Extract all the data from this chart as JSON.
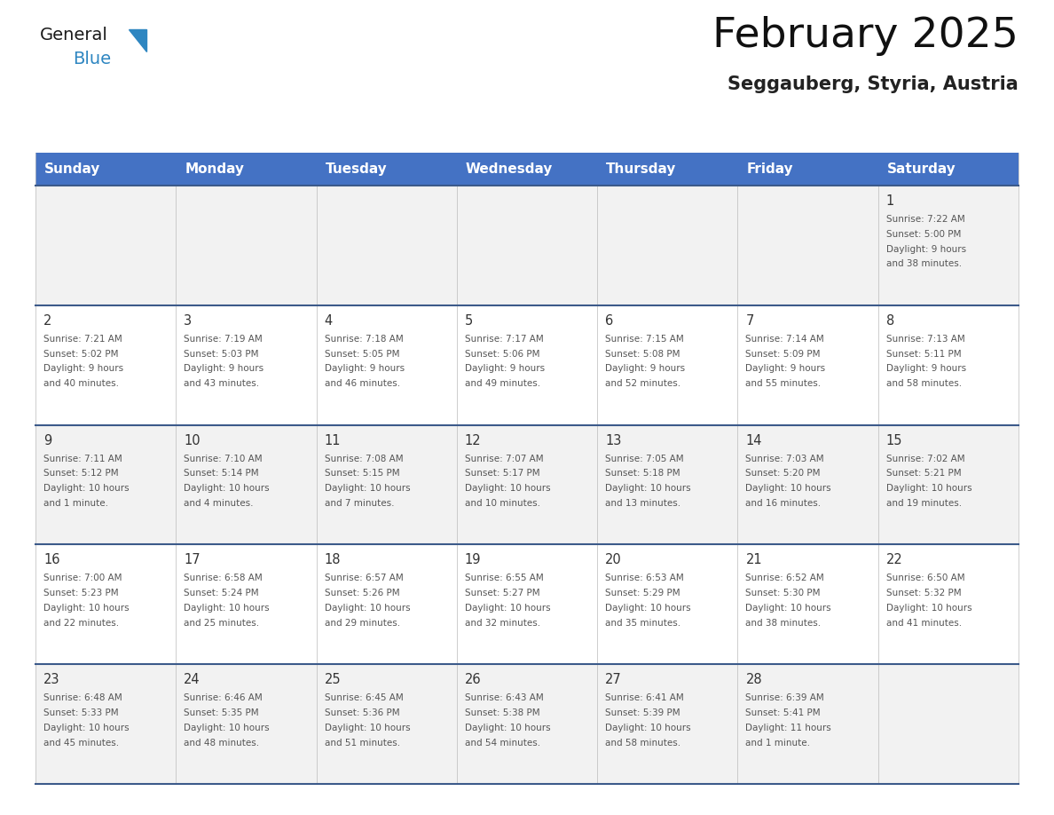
{
  "title": "February 2025",
  "subtitle": "Seggauberg, Styria, Austria",
  "header_bg": "#4472C4",
  "header_text_color": "#FFFFFF",
  "days_of_week": [
    "Sunday",
    "Monday",
    "Tuesday",
    "Wednesday",
    "Thursday",
    "Friday",
    "Saturday"
  ],
  "row_bg": [
    "#F2F2F2",
    "#FFFFFF",
    "#F2F2F2",
    "#FFFFFF",
    "#F2F2F2"
  ],
  "cell_border_color": "#3C5A8A",
  "day_number_color": "#333333",
  "text_color": "#555555",
  "logo_general_color": "#1a1a1a",
  "logo_blue_color": "#2E86C1",
  "calendar": [
    [
      {
        "day": null,
        "lines": []
      },
      {
        "day": null,
        "lines": []
      },
      {
        "day": null,
        "lines": []
      },
      {
        "day": null,
        "lines": []
      },
      {
        "day": null,
        "lines": []
      },
      {
        "day": null,
        "lines": []
      },
      {
        "day": 1,
        "lines": [
          "Sunrise: 7:22 AM",
          "Sunset: 5:00 PM",
          "Daylight: 9 hours",
          "and 38 minutes."
        ]
      }
    ],
    [
      {
        "day": 2,
        "lines": [
          "Sunrise: 7:21 AM",
          "Sunset: 5:02 PM",
          "Daylight: 9 hours",
          "and 40 minutes."
        ]
      },
      {
        "day": 3,
        "lines": [
          "Sunrise: 7:19 AM",
          "Sunset: 5:03 PM",
          "Daylight: 9 hours",
          "and 43 minutes."
        ]
      },
      {
        "day": 4,
        "lines": [
          "Sunrise: 7:18 AM",
          "Sunset: 5:05 PM",
          "Daylight: 9 hours",
          "and 46 minutes."
        ]
      },
      {
        "day": 5,
        "lines": [
          "Sunrise: 7:17 AM",
          "Sunset: 5:06 PM",
          "Daylight: 9 hours",
          "and 49 minutes."
        ]
      },
      {
        "day": 6,
        "lines": [
          "Sunrise: 7:15 AM",
          "Sunset: 5:08 PM",
          "Daylight: 9 hours",
          "and 52 minutes."
        ]
      },
      {
        "day": 7,
        "lines": [
          "Sunrise: 7:14 AM",
          "Sunset: 5:09 PM",
          "Daylight: 9 hours",
          "and 55 minutes."
        ]
      },
      {
        "day": 8,
        "lines": [
          "Sunrise: 7:13 AM",
          "Sunset: 5:11 PM",
          "Daylight: 9 hours",
          "and 58 minutes."
        ]
      }
    ],
    [
      {
        "day": 9,
        "lines": [
          "Sunrise: 7:11 AM",
          "Sunset: 5:12 PM",
          "Daylight: 10 hours",
          "and 1 minute."
        ]
      },
      {
        "day": 10,
        "lines": [
          "Sunrise: 7:10 AM",
          "Sunset: 5:14 PM",
          "Daylight: 10 hours",
          "and 4 minutes."
        ]
      },
      {
        "day": 11,
        "lines": [
          "Sunrise: 7:08 AM",
          "Sunset: 5:15 PM",
          "Daylight: 10 hours",
          "and 7 minutes."
        ]
      },
      {
        "day": 12,
        "lines": [
          "Sunrise: 7:07 AM",
          "Sunset: 5:17 PM",
          "Daylight: 10 hours",
          "and 10 minutes."
        ]
      },
      {
        "day": 13,
        "lines": [
          "Sunrise: 7:05 AM",
          "Sunset: 5:18 PM",
          "Daylight: 10 hours",
          "and 13 minutes."
        ]
      },
      {
        "day": 14,
        "lines": [
          "Sunrise: 7:03 AM",
          "Sunset: 5:20 PM",
          "Daylight: 10 hours",
          "and 16 minutes."
        ]
      },
      {
        "day": 15,
        "lines": [
          "Sunrise: 7:02 AM",
          "Sunset: 5:21 PM",
          "Daylight: 10 hours",
          "and 19 minutes."
        ]
      }
    ],
    [
      {
        "day": 16,
        "lines": [
          "Sunrise: 7:00 AM",
          "Sunset: 5:23 PM",
          "Daylight: 10 hours",
          "and 22 minutes."
        ]
      },
      {
        "day": 17,
        "lines": [
          "Sunrise: 6:58 AM",
          "Sunset: 5:24 PM",
          "Daylight: 10 hours",
          "and 25 minutes."
        ]
      },
      {
        "day": 18,
        "lines": [
          "Sunrise: 6:57 AM",
          "Sunset: 5:26 PM",
          "Daylight: 10 hours",
          "and 29 minutes."
        ]
      },
      {
        "day": 19,
        "lines": [
          "Sunrise: 6:55 AM",
          "Sunset: 5:27 PM",
          "Daylight: 10 hours",
          "and 32 minutes."
        ]
      },
      {
        "day": 20,
        "lines": [
          "Sunrise: 6:53 AM",
          "Sunset: 5:29 PM",
          "Daylight: 10 hours",
          "and 35 minutes."
        ]
      },
      {
        "day": 21,
        "lines": [
          "Sunrise: 6:52 AM",
          "Sunset: 5:30 PM",
          "Daylight: 10 hours",
          "and 38 minutes."
        ]
      },
      {
        "day": 22,
        "lines": [
          "Sunrise: 6:50 AM",
          "Sunset: 5:32 PM",
          "Daylight: 10 hours",
          "and 41 minutes."
        ]
      }
    ],
    [
      {
        "day": 23,
        "lines": [
          "Sunrise: 6:48 AM",
          "Sunset: 5:33 PM",
          "Daylight: 10 hours",
          "and 45 minutes."
        ]
      },
      {
        "day": 24,
        "lines": [
          "Sunrise: 6:46 AM",
          "Sunset: 5:35 PM",
          "Daylight: 10 hours",
          "and 48 minutes."
        ]
      },
      {
        "day": 25,
        "lines": [
          "Sunrise: 6:45 AM",
          "Sunset: 5:36 PM",
          "Daylight: 10 hours",
          "and 51 minutes."
        ]
      },
      {
        "day": 26,
        "lines": [
          "Sunrise: 6:43 AM",
          "Sunset: 5:38 PM",
          "Daylight: 10 hours",
          "and 54 minutes."
        ]
      },
      {
        "day": 27,
        "lines": [
          "Sunrise: 6:41 AM",
          "Sunset: 5:39 PM",
          "Daylight: 10 hours",
          "and 58 minutes."
        ]
      },
      {
        "day": 28,
        "lines": [
          "Sunrise: 6:39 AM",
          "Sunset: 5:41 PM",
          "Daylight: 11 hours",
          "and 1 minute."
        ]
      },
      {
        "day": null,
        "lines": []
      }
    ]
  ]
}
